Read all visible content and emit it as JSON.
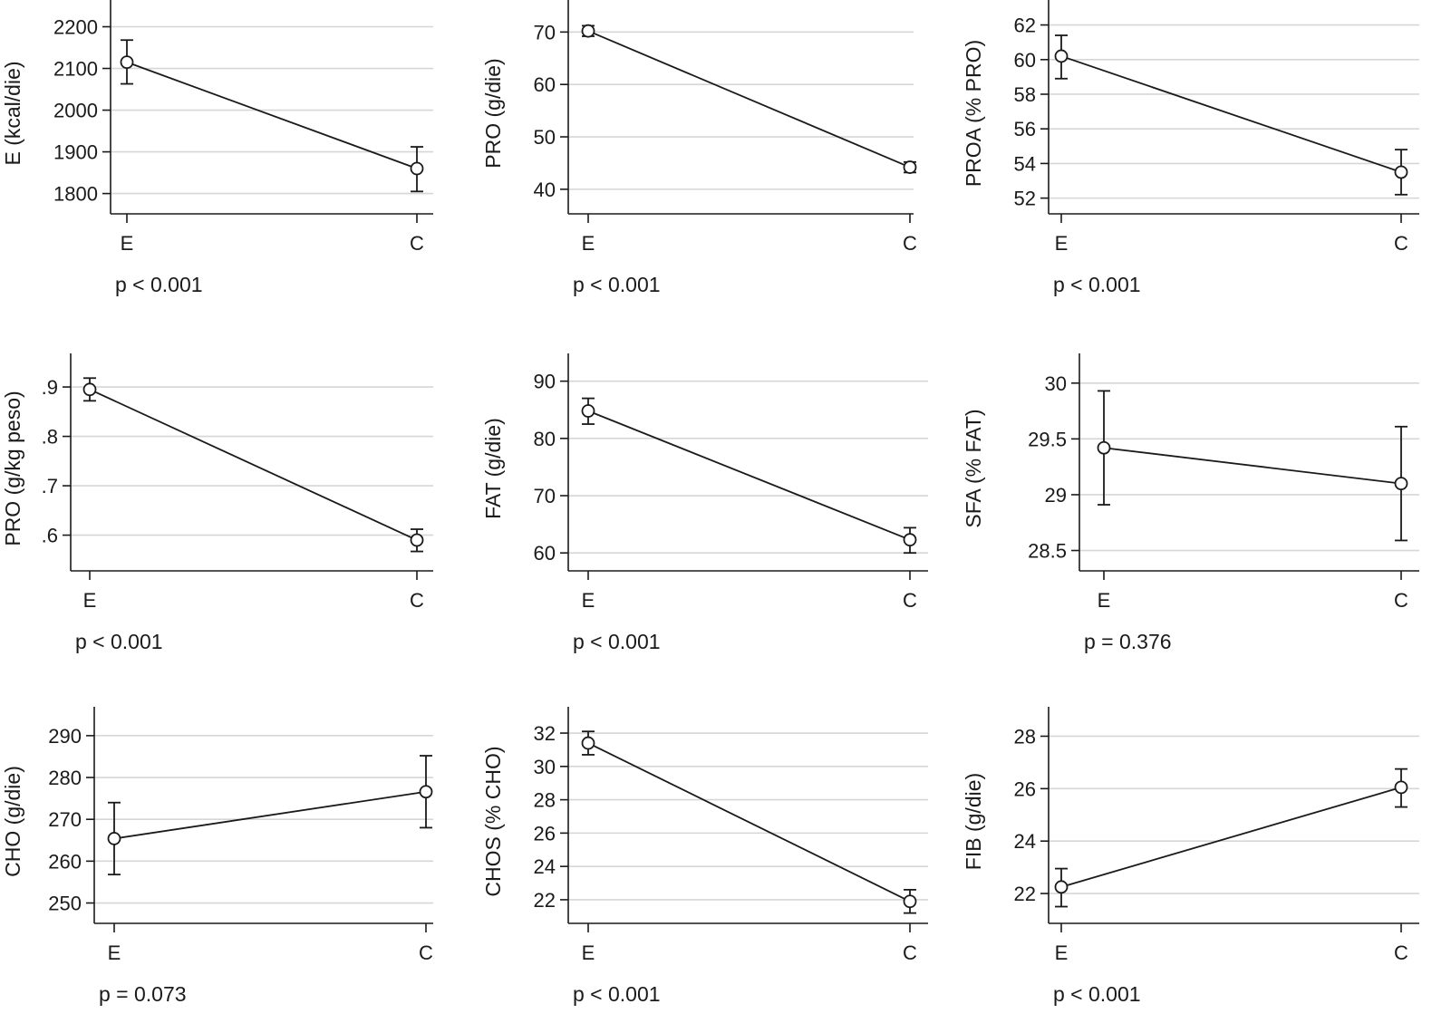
{
  "chart_data": [
    {
      "type": "line",
      "categories": [
        "E",
        "C"
      ],
      "ylabel": "E (kcal/die)",
      "yticks": [
        1800,
        1900,
        2000,
        2100,
        2200
      ],
      "ytick_labels": [
        "1800",
        "1900",
        "2000",
        "2100",
        "2200"
      ],
      "ylim": [
        1760,
        2225
      ],
      "values": [
        2115,
        1860
      ],
      "ci_low": [
        2063,
        1805
      ],
      "ci_high": [
        2168,
        1912
      ],
      "pvalue": "p < 0.001"
    },
    {
      "type": "line",
      "categories": [
        "E",
        "C"
      ],
      "ylabel": "PRO (g/die)",
      "yticks": [
        40,
        50,
        60,
        70
      ],
      "ytick_labels": [
        "40",
        "50",
        "60",
        "70"
      ],
      "ylim": [
        36,
        73
      ],
      "values": [
        70.2,
        44.2
      ],
      "ci_low": [
        69.2,
        43.2
      ],
      "ci_high": [
        71.2,
        45.2
      ],
      "pvalue": "p < 0.001"
    },
    {
      "type": "line",
      "categories": [
        "E",
        "C"
      ],
      "ylabel": "PROA (% PRO)",
      "yticks": [
        52,
        54,
        56,
        58,
        60,
        62
      ],
      "ytick_labels": [
        "52",
        "54",
        "56",
        "58",
        "60",
        "62"
      ],
      "ylim": [
        51.3,
        62.5
      ],
      "values": [
        60.2,
        53.5
      ],
      "ci_low": [
        58.9,
        52.2
      ],
      "ci_high": [
        61.4,
        54.8
      ],
      "pvalue": "p < 0.001"
    },
    {
      "type": "line",
      "categories": [
        "E",
        "C"
      ],
      "ylabel": "PRO (g/kg peso)",
      "yticks": [
        0.6,
        0.7,
        0.8,
        0.9
      ],
      "ytick_labels": [
        ".6",
        ".7",
        ".8",
        ".9"
      ],
      "ylim": [
        0.535,
        0.935
      ],
      "values": [
        0.895,
        0.59
      ],
      "ci_low": [
        0.872,
        0.567
      ],
      "ci_high": [
        0.918,
        0.612
      ],
      "pvalue": "p < 0.001"
    },
    {
      "type": "line",
      "categories": [
        "E",
        "C"
      ],
      "ylabel": "FAT (g/die)",
      "yticks": [
        60,
        70,
        80,
        90
      ],
      "ytick_labels": [
        "60",
        "70",
        "80",
        "90"
      ],
      "ylim": [
        57.5,
        92
      ],
      "values": [
        84.8,
        62.3
      ],
      "ci_low": [
        82.5,
        60
      ],
      "ci_high": [
        87,
        64.4
      ],
      "pvalue": "p < 0.001"
    },
    {
      "type": "line",
      "categories": [
        "E",
        "C"
      ],
      "ylabel": "SFA (% FAT)",
      "yticks": [
        28.5,
        29,
        29.5,
        30
      ],
      "ytick_labels": [
        "28.5",
        "29",
        "29.5",
        "30"
      ],
      "ylim": [
        28.35,
        30.12
      ],
      "values": [
        29.42,
        29.1
      ],
      "ci_low": [
        28.91,
        28.59
      ],
      "ci_high": [
        29.93,
        29.61
      ],
      "pvalue": "p = 0.376"
    },
    {
      "type": "line",
      "categories": [
        "E",
        "C"
      ],
      "ylabel": "CHO (g/die)",
      "yticks": [
        250,
        260,
        270,
        280,
        290
      ],
      "ytick_labels": [
        "250",
        "260",
        "270",
        "280",
        "290"
      ],
      "ylim": [
        246,
        293
      ],
      "values": [
        265.4,
        276.6
      ],
      "ci_low": [
        256.8,
        268
      ],
      "ci_high": [
        274,
        285.2
      ],
      "pvalue": "p = 0.073"
    },
    {
      "type": "line",
      "categories": [
        "E",
        "C"
      ],
      "ylabel": "CHOS (% CHO)",
      "yticks": [
        22,
        24,
        26,
        28,
        30,
        32
      ],
      "ytick_labels": [
        "22",
        "24",
        "26",
        "28",
        "30",
        "32"
      ],
      "ylim": [
        20.8,
        32.6
      ],
      "values": [
        31.4,
        21.9
      ],
      "ci_low": [
        30.7,
        21.2
      ],
      "ci_high": [
        32.1,
        22.6
      ],
      "pvalue": "p < 0.001"
    },
    {
      "type": "line",
      "categories": [
        "E",
        "C"
      ],
      "ylabel": "FIB (g/die)",
      "yticks": [
        22,
        24,
        26,
        28
      ],
      "ytick_labels": [
        "22",
        "24",
        "26",
        "28"
      ],
      "ylim": [
        21,
        28.5
      ],
      "values": [
        22.25,
        26.05
      ],
      "ci_low": [
        21.5,
        25.3
      ],
      "ci_high": [
        22.95,
        26.75
      ],
      "pvalue": "p < 0.001"
    }
  ]
}
